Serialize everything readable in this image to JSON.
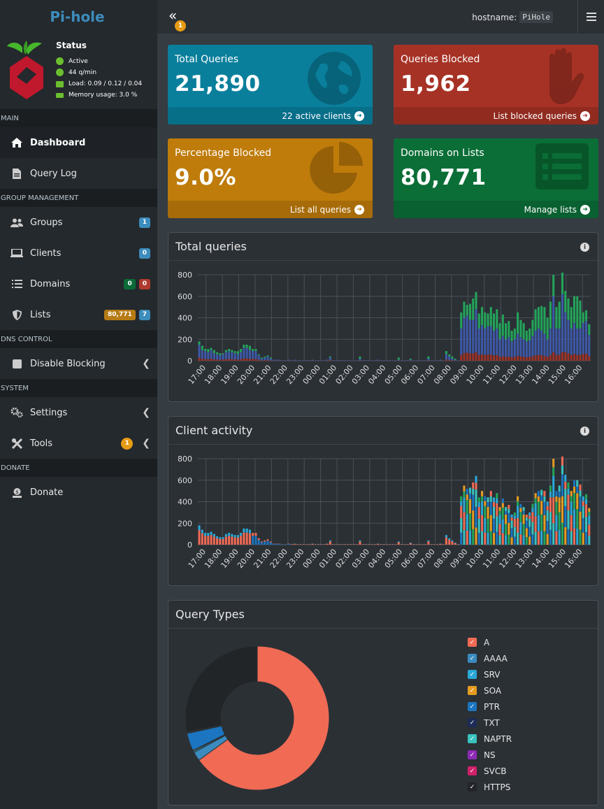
{
  "brand": "Pi-hole",
  "status": {
    "title": "Status",
    "active": "Active",
    "qpm": "44 q/min",
    "load": "Load: 0.09 / 0.12 / 0.04",
    "memory": "Memory usage: 3.0 %"
  },
  "sidebar": {
    "sections": {
      "main": "MAIN",
      "group": "GROUP MANAGEMENT",
      "dns": "DNS CONTROL",
      "system": "SYSTEM",
      "donate": "DONATE"
    },
    "items": {
      "dashboard": "Dashboard",
      "querylog": "Query Log",
      "groups": "Groups",
      "groups_badge": "1",
      "clients": "Clients",
      "clients_badge": "0",
      "domains": "Domains",
      "domains_allow": "0",
      "domains_deny": "0",
      "lists": "Lists",
      "lists_count": "80,771",
      "lists_badge": "7",
      "disable": "Disable Blocking",
      "settings": "Settings",
      "tools": "Tools",
      "tools_badge": "1",
      "donate": "Donate"
    }
  },
  "topbar": {
    "collapse_badge": "1",
    "hostname_label": "hostname:",
    "hostname_value": "PiHole"
  },
  "stats": {
    "total": {
      "title": "Total Queries",
      "value": "21,890",
      "link": "22 active clients",
      "color": "#0a7f9c"
    },
    "blocked": {
      "title": "Queries Blocked",
      "value": "1,962",
      "link": "List blocked queries",
      "color": "#a63225"
    },
    "percent": {
      "title": "Percentage Blocked",
      "value": "9.0%",
      "link": "List all queries",
      "color": "#bf7c0b"
    },
    "domains": {
      "title": "Domains on Lists",
      "value": "80,771",
      "link": "Manage lists",
      "color": "#0b6e37"
    }
  },
  "cards": {
    "total_queries": "Total queries",
    "client_activity": "Client activity",
    "query_types": "Query Types"
  },
  "chart_data": [
    {
      "type": "bar",
      "title": "Total queries",
      "xticks": [
        "17:00",
        "18:00",
        "19:00",
        "20:00",
        "21:00",
        "22:00",
        "23:00",
        "00:00",
        "01:00",
        "02:00",
        "03:00",
        "04:00",
        "05:00",
        "06:00",
        "07:00",
        "08:00",
        "09:00",
        "10:00",
        "11:00",
        "12:00",
        "13:00",
        "14:00",
        "15:00",
        "16:00"
      ],
      "ylim": [
        0,
        800
      ],
      "yticks": [
        0,
        200,
        400,
        600,
        800
      ],
      "series": [
        {
          "color": "#3e58a8",
          "values": [
            150,
            100,
            90,
            80,
            100,
            70,
            60,
            50,
            60,
            80,
            90,
            80,
            70,
            60,
            80,
            120,
            120,
            100,
            90,
            90,
            50,
            20,
            30,
            40,
            20,
            10,
            10,
            10,
            5,
            5,
            10,
            5,
            10,
            5,
            5,
            5,
            5,
            5,
            10,
            5,
            5,
            5,
            5,
            10,
            30,
            5,
            5,
            5,
            5,
            5,
            5,
            5,
            5,
            5,
            20,
            5,
            5,
            5,
            5,
            5,
            10,
            5,
            5,
            5,
            5,
            5,
            5,
            10,
            5,
            5,
            5,
            10,
            5,
            5,
            5,
            5,
            5,
            20,
            5,
            5,
            5,
            10,
            5,
            60,
            40,
            20,
            10,
            5,
            300,
            400,
            420,
            380,
            380,
            480,
            300,
            330,
            300,
            320,
            320,
            280,
            300,
            200,
            230,
            200,
            220,
            180,
            200,
            250,
            220,
            200,
            180,
            190,
            230,
            280,
            300,
            280,
            250,
            200,
            300,
            600,
            300,
            300,
            620,
            450,
            380,
            300,
            350,
            300,
            300,
            350,
            370,
            240
          ],
          "extra": [
            30,
            40,
            20,
            30,
            20,
            30,
            20,
            20,
            10,
            20,
            20,
            20,
            20,
            30,
            30,
            30,
            30,
            40,
            20,
            20,
            10,
            10,
            10,
            10,
            10,
            0,
            0,
            0,
            0,
            0,
            0,
            0,
            0,
            0,
            0,
            0,
            0,
            0,
            0,
            0,
            0,
            0,
            0,
            0,
            10,
            0,
            0,
            0,
            0,
            0,
            0,
            0,
            0,
            0,
            20,
            0,
            0,
            0,
            0,
            0,
            0,
            0,
            0,
            0,
            0,
            0,
            0,
            20,
            0,
            0,
            0,
            10,
            0,
            0,
            0,
            0,
            0,
            20,
            0,
            0,
            0,
            0,
            0,
            30,
            20,
            20,
            10,
            0,
            150,
            150,
            100,
            150,
            200,
            160,
            140,
            170,
            150,
            120,
            180,
            160,
            180,
            150,
            200,
            150,
            150,
            100,
            100,
            200,
            160,
            150,
            100,
            110,
            150,
            200,
            200,
            230,
            250,
            200,
            250,
            200,
            200,
            250,
            200,
            200,
            200,
            200,
            250,
            300,
            260,
            100,
            100,
            100
          ]
        },
        {
          "color": "#23a45a",
          "values": []
        },
        {
          "color": "#9b3228",
          "values": []
        }
      ]
    },
    {
      "type": "bar",
      "title": "Client activity",
      "xticks": [
        "17:00",
        "18:00",
        "19:00",
        "20:00",
        "21:00",
        "22:00",
        "23:00",
        "00:00",
        "01:00",
        "02:00",
        "03:00",
        "04:00",
        "05:00",
        "06:00",
        "07:00",
        "08:00",
        "09:00",
        "10:00",
        "11:00",
        "12:00",
        "13:00",
        "14:00",
        "15:00",
        "16:00"
      ],
      "ylim": [
        0,
        800
      ],
      "yticks": [
        0,
        200,
        400,
        600,
        800
      ]
    },
    {
      "type": "pie",
      "title": "Query Types",
      "categories": [
        "A",
        "AAAA",
        "SRV",
        "SOA",
        "PTR",
        "TXT",
        "NAPTR",
        "NS",
        "SVCB",
        "HTTPS"
      ],
      "values": [
        65,
        2,
        0.3,
        0.2,
        4,
        0.1,
        0.1,
        0.1,
        0.1,
        28
      ],
      "colors": [
        "#f06a54",
        "#3b8bbf",
        "#2aa7d6",
        "#e59b21",
        "#1b75c0",
        "#1c2c56",
        "#39c3bf",
        "#8e2bb6",
        "#d0216b",
        "#222528"
      ]
    }
  ]
}
